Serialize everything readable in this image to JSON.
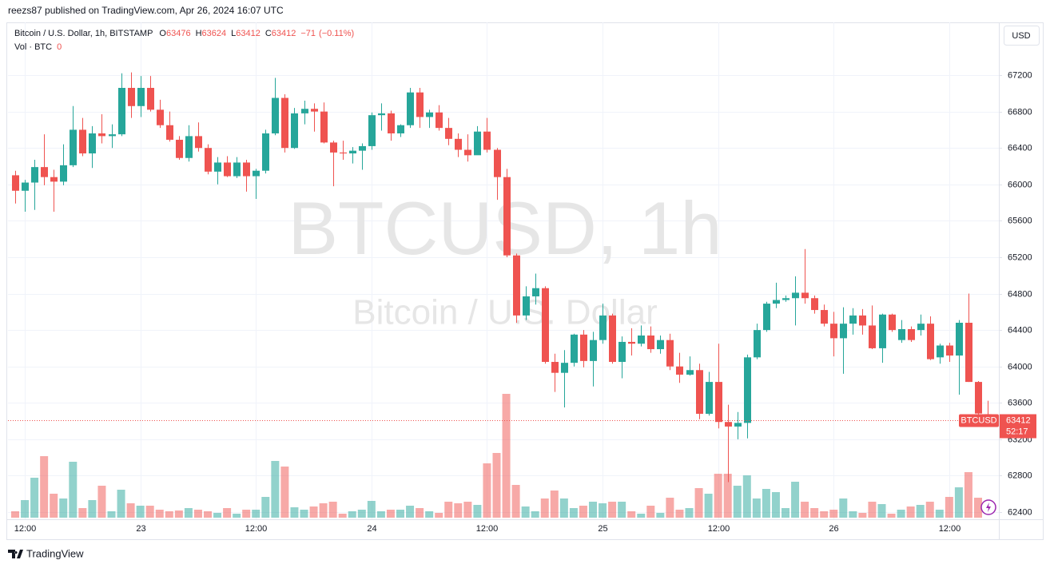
{
  "header": {
    "byline": "reezs87 published on TradingView.com, Apr 26, 2024 16:07 UTC"
  },
  "footer": {
    "brand": "TradingView"
  },
  "chart_data": {
    "type": "candlestick",
    "title": "Bitcoin / U.S. Dollar, 1h, BITSTAMP",
    "legend_labels": {
      "open": "O",
      "high": "H",
      "low": "L",
      "close": "C"
    },
    "change": {
      "value": -71,
      "label": "−71"
    },
    "change_pct": {
      "value": -0.11,
      "label": "(−0.11%)"
    },
    "volume_title": "Vol · BTC",
    "watermark": "BTCUSD, 1h",
    "watermark_sub": "Bitcoin / U.S. Dollar",
    "currency": "USD",
    "symbol": "BTCUSD",
    "countdown": "52:17",
    "up_color": "#26a69a",
    "down_color": "#ef5350",
    "grid": true,
    "ylim": [
      62339,
      67762
    ],
    "yticks": [
      62400,
      62800,
      63200,
      63600,
      64000,
      64400,
      64800,
      65200,
      65600,
      66000,
      66400,
      66800,
      67200
    ],
    "categories": [
      null,
      "12:00",
      null,
      null,
      null,
      null,
      null,
      null,
      null,
      null,
      null,
      null,
      null,
      "23",
      null,
      null,
      null,
      null,
      null,
      null,
      null,
      null,
      null,
      null,
      null,
      "12:00",
      null,
      null,
      null,
      null,
      null,
      null,
      null,
      null,
      null,
      null,
      null,
      "24",
      null,
      null,
      null,
      null,
      null,
      null,
      null,
      null,
      null,
      null,
      null,
      "12:00",
      null,
      null,
      null,
      null,
      null,
      null,
      null,
      null,
      null,
      null,
      null,
      "25",
      null,
      null,
      null,
      null,
      null,
      null,
      null,
      null,
      null,
      null,
      null,
      "12:00",
      null,
      null,
      null,
      null,
      null,
      null,
      null,
      null,
      null,
      null,
      null,
      "26",
      null,
      null,
      null,
      null,
      null,
      null,
      null,
      null,
      null,
      null,
      null,
      "12:00",
      null,
      null,
      null,
      null
    ],
    "open": [
      66100,
      65930,
      66020,
      66190,
      66080,
      66030,
      66210,
      66600,
      66340,
      66560,
      66530,
      66550,
      67060,
      66860,
      67060,
      66820,
      66650,
      66490,
      66290,
      66530,
      66400,
      66140,
      66240,
      66090,
      66240,
      66090,
      66150,
      66560,
      66950,
      66400,
      66780,
      66830,
      66800,
      66460,
      66350,
      66340,
      66370,
      66420,
      66760,
      66780,
      66560,
      66650,
      67010,
      66740,
      66790,
      66620,
      66500,
      66380,
      66320,
      66580,
      66380,
      66080,
      65220,
      64560,
      64770,
      64860,
      64050,
      63930,
      64040,
      64350,
      64060,
      64290,
      64560,
      64050,
      64270,
      64250,
      64340,
      64190,
      64290,
      64000,
      63910,
      63960,
      63480,
      63830,
      63390,
      63340,
      63380,
      64100,
      64400,
      64690,
      64730,
      64750,
      64810,
      64750,
      64620,
      64470,
      64310,
      64470,
      64560,
      64450,
      64200,
      64570,
      64290,
      64410,
      64400,
      64470,
      64100,
      64230,
      64120,
      64480,
      63830,
      63476
    ],
    "high": [
      66150,
      66050,
      66270,
      66550,
      66160,
      66440,
      66860,
      66730,
      66640,
      66770,
      66660,
      67220,
      67230,
      67190,
      67190,
      66930,
      66800,
      66530,
      66650,
      66680,
      66440,
      66300,
      66310,
      66300,
      66270,
      66170,
      66600,
      67170,
      66990,
      66840,
      66920,
      66890,
      66900,
      66480,
      66480,
      66410,
      66450,
      66790,
      66890,
      66810,
      66660,
      67060,
      67060,
      66820,
      66870,
      66730,
      66560,
      66550,
      66640,
      66730,
      66400,
      66170,
      65240,
      64880,
      65020,
      64880,
      64140,
      64180,
      64360,
      64400,
      64380,
      64690,
      64580,
      64330,
      64420,
      64450,
      64440,
      64340,
      64360,
      64150,
      64110,
      64030,
      63940,
      64250,
      63580,
      63500,
      64130,
      64470,
      64710,
      64920,
      64780,
      64990,
      65290,
      64780,
      64680,
      64600,
      64650,
      64640,
      64630,
      64670,
      64580,
      64580,
      64510,
      64440,
      64570,
      64550,
      64250,
      64260,
      64510,
      64800,
      63840,
      63624
    ],
    "low": [
      65790,
      65700,
      65720,
      65990,
      65700,
      65990,
      66190,
      66310,
      66180,
      66450,
      66400,
      66530,
      66730,
      66740,
      66800,
      66620,
      66470,
      66270,
      66250,
      66360,
      66110,
      66000,
      66080,
      66070,
      65920,
      65840,
      66120,
      66540,
      66350,
      66390,
      66660,
      66580,
      66450,
      65980,
      66270,
      66230,
      66160,
      66380,
      66590,
      66480,
      66520,
      66620,
      66620,
      66620,
      66590,
      66430,
      66300,
      66250,
      66350,
      66350,
      65830,
      65200,
      64480,
      64510,
      64680,
      64030,
      63720,
      63550,
      64000,
      63990,
      63780,
      64250,
      64030,
      63870,
      64120,
      64220,
      64150,
      64140,
      63960,
      63820,
      63900,
      63420,
      63460,
      63320,
      62730,
      63200,
      63210,
      64080,
      64380,
      64640,
      64710,
      64450,
      64690,
      64580,
      64440,
      64110,
      63920,
      64350,
      64350,
      64190,
      64040,
      64380,
      64260,
      64270,
      64340,
      64070,
      64030,
      64050,
      63690,
      63830,
      63450,
      63412
    ],
    "close": [
      65930,
      66020,
      66190,
      66080,
      66030,
      66210,
      66600,
      66340,
      66560,
      66530,
      66550,
      67060,
      66860,
      67060,
      66820,
      66650,
      66490,
      66290,
      66530,
      66400,
      66140,
      66240,
      66090,
      66240,
      66090,
      66150,
      66560,
      66950,
      66400,
      66780,
      66830,
      66800,
      66460,
      66350,
      66340,
      66370,
      66420,
      66760,
      66780,
      66560,
      66650,
      67010,
      66740,
      66790,
      66620,
      66500,
      66380,
      66320,
      66580,
      66380,
      66080,
      65220,
      64560,
      64770,
      64860,
      64050,
      63930,
      64040,
      64350,
      64060,
      64290,
      64560,
      64050,
      64270,
      64250,
      64340,
      64190,
      64290,
      64000,
      63910,
      63960,
      63480,
      63830,
      63390,
      63340,
      63380,
      64100,
      64400,
      64690,
      64730,
      64750,
      64810,
      64750,
      64620,
      64470,
      64310,
      64470,
      64560,
      64450,
      64200,
      64570,
      64400,
      64410,
      64290,
      64470,
      64080,
      64230,
      64120,
      64480,
      63830,
      63483,
      63412
    ],
    "volume": [
      8,
      22,
      50,
      77,
      30,
      24,
      70,
      12,
      22,
      40,
      8,
      35,
      18,
      15,
      15,
      10,
      8,
      9,
      12,
      10,
      8,
      6,
      12,
      5,
      10,
      10,
      26,
      71,
      64,
      13,
      10,
      14,
      18,
      20,
      5,
      8,
      10,
      21,
      8,
      10,
      10,
      15,
      12,
      8,
      6,
      20,
      18,
      20,
      16,
      68,
      81,
      155,
      41,
      14,
      8,
      24,
      34,
      24,
      12,
      15,
      20,
      18,
      20,
      20,
      8,
      5,
      15,
      6,
      25,
      10,
      12,
      37,
      30,
      55,
      55,
      40,
      53,
      24,
      36,
      32,
      12,
      45,
      20,
      12,
      8,
      10,
      24,
      8,
      6,
      20,
      17,
      5,
      10,
      14,
      16,
      20,
      10,
      26,
      38,
      57,
      25,
      0
    ]
  }
}
